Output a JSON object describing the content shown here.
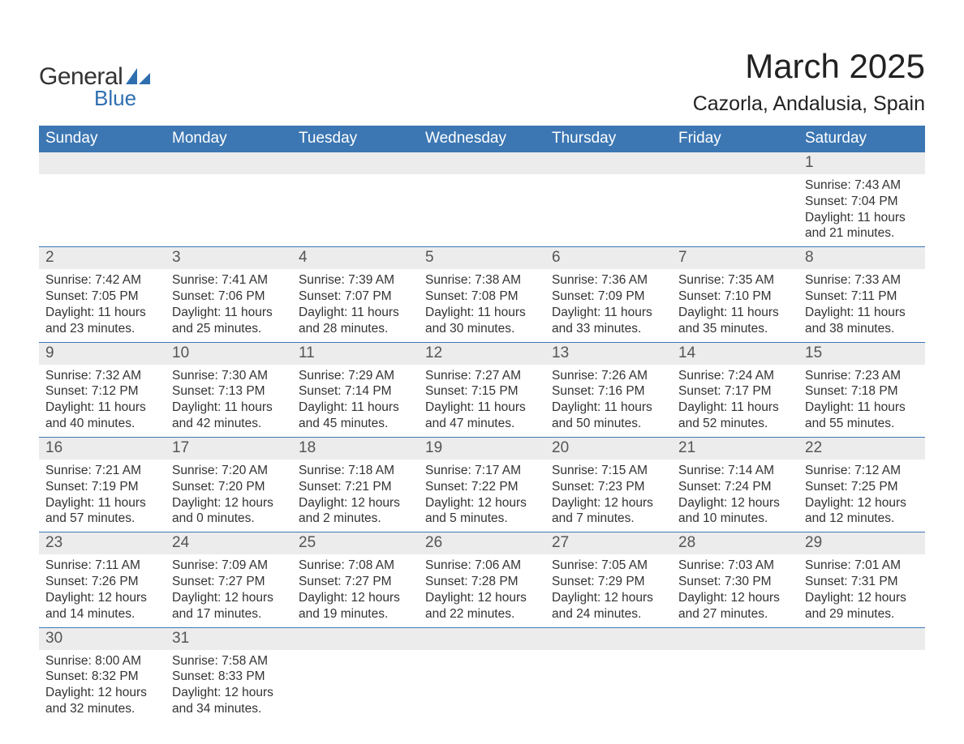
{
  "brand": {
    "text1": "General",
    "text2": "Blue",
    "text1_color": "#333333",
    "text2_color": "#2f6fb0",
    "sail_color": "#2f6fb0"
  },
  "title": {
    "month": "March 2025",
    "location": "Cazorla, Andalusia, Spain",
    "month_fontsize": 42,
    "location_fontsize": 25,
    "color": "#222222"
  },
  "colors": {
    "header_bg": "#3c77b3",
    "header_text": "#ffffff",
    "daynum_bg": "#ececec",
    "daynum_text": "#555555",
    "body_text": "#333333",
    "row_border": "#3c77b3",
    "page_bg": "#ffffff"
  },
  "day_headers": [
    "Sunday",
    "Monday",
    "Tuesday",
    "Wednesday",
    "Thursday",
    "Friday",
    "Saturday"
  ],
  "weeks": [
    [
      null,
      null,
      null,
      null,
      null,
      null,
      {
        "n": "1",
        "sr": "Sunrise: 7:43 AM",
        "ss": "Sunset: 7:04 PM",
        "dl1": "Daylight: 11 hours",
        "dl2": "and 21 minutes."
      }
    ],
    [
      {
        "n": "2",
        "sr": "Sunrise: 7:42 AM",
        "ss": "Sunset: 7:05 PM",
        "dl1": "Daylight: 11 hours",
        "dl2": "and 23 minutes."
      },
      {
        "n": "3",
        "sr": "Sunrise: 7:41 AM",
        "ss": "Sunset: 7:06 PM",
        "dl1": "Daylight: 11 hours",
        "dl2": "and 25 minutes."
      },
      {
        "n": "4",
        "sr": "Sunrise: 7:39 AM",
        "ss": "Sunset: 7:07 PM",
        "dl1": "Daylight: 11 hours",
        "dl2": "and 28 minutes."
      },
      {
        "n": "5",
        "sr": "Sunrise: 7:38 AM",
        "ss": "Sunset: 7:08 PM",
        "dl1": "Daylight: 11 hours",
        "dl2": "and 30 minutes."
      },
      {
        "n": "6",
        "sr": "Sunrise: 7:36 AM",
        "ss": "Sunset: 7:09 PM",
        "dl1": "Daylight: 11 hours",
        "dl2": "and 33 minutes."
      },
      {
        "n": "7",
        "sr": "Sunrise: 7:35 AM",
        "ss": "Sunset: 7:10 PM",
        "dl1": "Daylight: 11 hours",
        "dl2": "and 35 minutes."
      },
      {
        "n": "8",
        "sr": "Sunrise: 7:33 AM",
        "ss": "Sunset: 7:11 PM",
        "dl1": "Daylight: 11 hours",
        "dl2": "and 38 minutes."
      }
    ],
    [
      {
        "n": "9",
        "sr": "Sunrise: 7:32 AM",
        "ss": "Sunset: 7:12 PM",
        "dl1": "Daylight: 11 hours",
        "dl2": "and 40 minutes."
      },
      {
        "n": "10",
        "sr": "Sunrise: 7:30 AM",
        "ss": "Sunset: 7:13 PM",
        "dl1": "Daylight: 11 hours",
        "dl2": "and 42 minutes."
      },
      {
        "n": "11",
        "sr": "Sunrise: 7:29 AM",
        "ss": "Sunset: 7:14 PM",
        "dl1": "Daylight: 11 hours",
        "dl2": "and 45 minutes."
      },
      {
        "n": "12",
        "sr": "Sunrise: 7:27 AM",
        "ss": "Sunset: 7:15 PM",
        "dl1": "Daylight: 11 hours",
        "dl2": "and 47 minutes."
      },
      {
        "n": "13",
        "sr": "Sunrise: 7:26 AM",
        "ss": "Sunset: 7:16 PM",
        "dl1": "Daylight: 11 hours",
        "dl2": "and 50 minutes."
      },
      {
        "n": "14",
        "sr": "Sunrise: 7:24 AM",
        "ss": "Sunset: 7:17 PM",
        "dl1": "Daylight: 11 hours",
        "dl2": "and 52 minutes."
      },
      {
        "n": "15",
        "sr": "Sunrise: 7:23 AM",
        "ss": "Sunset: 7:18 PM",
        "dl1": "Daylight: 11 hours",
        "dl2": "and 55 minutes."
      }
    ],
    [
      {
        "n": "16",
        "sr": "Sunrise: 7:21 AM",
        "ss": "Sunset: 7:19 PM",
        "dl1": "Daylight: 11 hours",
        "dl2": "and 57 minutes."
      },
      {
        "n": "17",
        "sr": "Sunrise: 7:20 AM",
        "ss": "Sunset: 7:20 PM",
        "dl1": "Daylight: 12 hours",
        "dl2": "and 0 minutes."
      },
      {
        "n": "18",
        "sr": "Sunrise: 7:18 AM",
        "ss": "Sunset: 7:21 PM",
        "dl1": "Daylight: 12 hours",
        "dl2": "and 2 minutes."
      },
      {
        "n": "19",
        "sr": "Sunrise: 7:17 AM",
        "ss": "Sunset: 7:22 PM",
        "dl1": "Daylight: 12 hours",
        "dl2": "and 5 minutes."
      },
      {
        "n": "20",
        "sr": "Sunrise: 7:15 AM",
        "ss": "Sunset: 7:23 PM",
        "dl1": "Daylight: 12 hours",
        "dl2": "and 7 minutes."
      },
      {
        "n": "21",
        "sr": "Sunrise: 7:14 AM",
        "ss": "Sunset: 7:24 PM",
        "dl1": "Daylight: 12 hours",
        "dl2": "and 10 minutes."
      },
      {
        "n": "22",
        "sr": "Sunrise: 7:12 AM",
        "ss": "Sunset: 7:25 PM",
        "dl1": "Daylight: 12 hours",
        "dl2": "and 12 minutes."
      }
    ],
    [
      {
        "n": "23",
        "sr": "Sunrise: 7:11 AM",
        "ss": "Sunset: 7:26 PM",
        "dl1": "Daylight: 12 hours",
        "dl2": "and 14 minutes."
      },
      {
        "n": "24",
        "sr": "Sunrise: 7:09 AM",
        "ss": "Sunset: 7:27 PM",
        "dl1": "Daylight: 12 hours",
        "dl2": "and 17 minutes."
      },
      {
        "n": "25",
        "sr": "Sunrise: 7:08 AM",
        "ss": "Sunset: 7:27 PM",
        "dl1": "Daylight: 12 hours",
        "dl2": "and 19 minutes."
      },
      {
        "n": "26",
        "sr": "Sunrise: 7:06 AM",
        "ss": "Sunset: 7:28 PM",
        "dl1": "Daylight: 12 hours",
        "dl2": "and 22 minutes."
      },
      {
        "n": "27",
        "sr": "Sunrise: 7:05 AM",
        "ss": "Sunset: 7:29 PM",
        "dl1": "Daylight: 12 hours",
        "dl2": "and 24 minutes."
      },
      {
        "n": "28",
        "sr": "Sunrise: 7:03 AM",
        "ss": "Sunset: 7:30 PM",
        "dl1": "Daylight: 12 hours",
        "dl2": "and 27 minutes."
      },
      {
        "n": "29",
        "sr": "Sunrise: 7:01 AM",
        "ss": "Sunset: 7:31 PM",
        "dl1": "Daylight: 12 hours",
        "dl2": "and 29 minutes."
      }
    ],
    [
      {
        "n": "30",
        "sr": "Sunrise: 8:00 AM",
        "ss": "Sunset: 8:32 PM",
        "dl1": "Daylight: 12 hours",
        "dl2": "and 32 minutes."
      },
      {
        "n": "31",
        "sr": "Sunrise: 7:58 AM",
        "ss": "Sunset: 8:33 PM",
        "dl1": "Daylight: 12 hours",
        "dl2": "and 34 minutes."
      },
      null,
      null,
      null,
      null,
      null
    ]
  ]
}
